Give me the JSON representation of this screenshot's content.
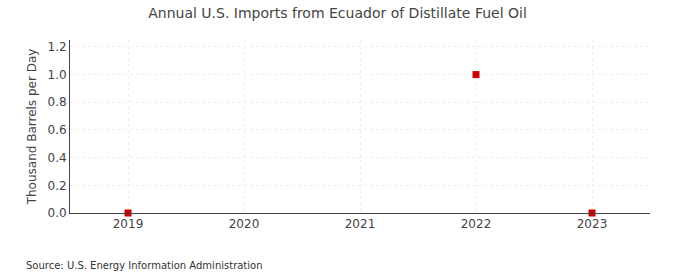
{
  "chart_data": {
    "type": "scatter",
    "title": "Annual U.S. Imports from Ecuador of Distillate Fuel Oil",
    "y_label": "Thousand Barrels per Day",
    "annotations": [
      "Source: U.S. Energy Information Administration"
    ],
    "x": [
      2019,
      2022,
      2023
    ],
    "values": [
      0.0,
      1.0,
      0.0
    ],
    "color": "#cc0000",
    "marker": "square",
    "xlim": [
      2018.5,
      2023.5
    ],
    "xticks": [
      2019,
      2020,
      2021,
      2022,
      2023
    ],
    "ylim": [
      0.0,
      1.25
    ],
    "yticks": [
      {
        "value": 0.0,
        "label": "0.0"
      },
      0.2,
      0.4,
      0.6,
      0.8,
      {
        "value": 1.0,
        "label": "1.0"
      },
      1.2
    ],
    "grid": true
  }
}
